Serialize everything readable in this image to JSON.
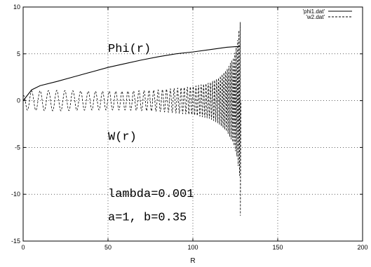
{
  "chart_data": {
    "type": "line",
    "title": "",
    "xlabel": "R",
    "ylabel": "",
    "xlim": [
      0,
      200
    ],
    "ylim": [
      -15,
      10
    ],
    "x_ticks": [
      0,
      50,
      100,
      150,
      200
    ],
    "y_ticks": [
      -15,
      -10,
      -5,
      0,
      5,
      10
    ],
    "grid": true,
    "legend_position": "top-right",
    "series": [
      {
        "name": "'phi1.dat'",
        "style": "solid",
        "color": "#000000",
        "x": [
          0,
          5,
          10,
          20,
          30,
          40,
          50,
          60,
          70,
          80,
          90,
          100,
          110,
          120,
          128
        ],
        "y": [
          0,
          1.15,
          1.6,
          2.05,
          2.55,
          3.05,
          3.55,
          3.95,
          4.35,
          4.7,
          5.0,
          5.2,
          5.45,
          5.7,
          5.8
        ]
      },
      {
        "name": "'w2.dat'",
        "style": "dashed",
        "color": "#000000",
        "oscillation": {
          "x_start": 0,
          "x_end": 128,
          "phase_start": 0.5,
          "phase_end": 0.0,
          "period_start": 5.0,
          "period_end": 0.75,
          "amplitude_points": [
            [
              0,
              1.0
            ],
            [
              20,
              1.1
            ],
            [
              40,
              1.0
            ],
            [
              60,
              1.0
            ],
            [
              80,
              1.15
            ],
            [
              100,
              1.5
            ],
            [
              110,
              1.9
            ],
            [
              115,
              2.4
            ],
            [
              120,
              3.3
            ],
            [
              124,
              4.6
            ],
            [
              126,
              6.0
            ],
            [
              127.5,
              8.0
            ],
            [
              128,
              8.5
            ]
          ],
          "spike_min": -12.3
        }
      }
    ],
    "annotations": [
      {
        "text": "Phi(r)",
        "x": 50,
        "y": 5.2
      },
      {
        "text": "W(r)",
        "x": 50,
        "y": -4.2
      },
      {
        "text": "lambda=0.001",
        "x": 50,
        "y": -10.3
      },
      {
        "text": "a=1, b=0.35",
        "x": 50,
        "y": -12.8
      }
    ]
  }
}
